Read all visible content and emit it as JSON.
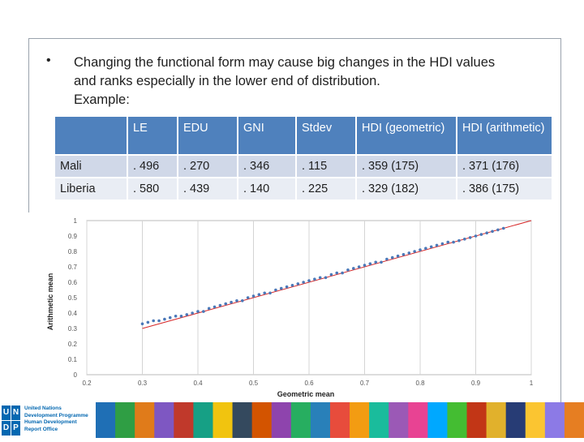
{
  "slide": {
    "bullet": "•",
    "text_line1": "Changing the functional form may cause big changes in the HDI values",
    "text_line2": "and ranks especially in the lower end of distribution.",
    "text_line3": "Example:"
  },
  "table": {
    "headers": [
      "",
      "LE",
      "EDU",
      "GNI",
      "Stdev",
      "HDI (geometric)",
      "HDI (arithmetic)"
    ],
    "rows": [
      [
        "Mali",
        ". 496",
        ". 270",
        ". 346",
        ". 115",
        ". 359 (175)",
        ". 371 (176)"
      ],
      [
        "Liberia",
        ". 580",
        ". 439",
        ". 140",
        ". 225",
        ". 329 (182)",
        ". 386 (175)"
      ]
    ]
  },
  "chart_data": {
    "type": "scatter",
    "xlabel": "Geometric mean",
    "ylabel": "Arithmetic mean",
    "xlim": [
      0.2,
      1
    ],
    "ylim": [
      0,
      1
    ],
    "xticks": [
      "0.2",
      "0.3",
      "0.4",
      "0.5",
      "0.6",
      "0.7",
      "0.8",
      "0.9",
      "1"
    ],
    "yticks": [
      "0",
      "0.1",
      "0.2",
      "0.3",
      "0.4",
      "0.5",
      "0.6",
      "0.7",
      "0.8",
      "0.9",
      "1"
    ],
    "grid": "vertical",
    "reference_line": {
      "from": [
        0.3,
        0.3
      ],
      "to": [
        1,
        1
      ],
      "color": "#d62728"
    },
    "point_color": "#4a78b8",
    "points": [
      [
        0.3,
        0.33
      ],
      [
        0.31,
        0.34
      ],
      [
        0.32,
        0.35
      ],
      [
        0.33,
        0.35
      ],
      [
        0.34,
        0.36
      ],
      [
        0.35,
        0.37
      ],
      [
        0.36,
        0.38
      ],
      [
        0.37,
        0.38
      ],
      [
        0.38,
        0.39
      ],
      [
        0.39,
        0.4
      ],
      [
        0.4,
        0.41
      ],
      [
        0.41,
        0.41
      ],
      [
        0.42,
        0.43
      ],
      [
        0.43,
        0.44
      ],
      [
        0.44,
        0.45
      ],
      [
        0.45,
        0.46
      ],
      [
        0.46,
        0.47
      ],
      [
        0.47,
        0.48
      ],
      [
        0.48,
        0.48
      ],
      [
        0.49,
        0.5
      ],
      [
        0.5,
        0.51
      ],
      [
        0.51,
        0.52
      ],
      [
        0.52,
        0.53
      ],
      [
        0.53,
        0.53
      ],
      [
        0.54,
        0.55
      ],
      [
        0.55,
        0.56
      ],
      [
        0.56,
        0.57
      ],
      [
        0.57,
        0.58
      ],
      [
        0.58,
        0.59
      ],
      [
        0.59,
        0.6
      ],
      [
        0.6,
        0.61
      ],
      [
        0.61,
        0.62
      ],
      [
        0.62,
        0.63
      ],
      [
        0.63,
        0.63
      ],
      [
        0.64,
        0.65
      ],
      [
        0.65,
        0.66
      ],
      [
        0.66,
        0.66
      ],
      [
        0.67,
        0.68
      ],
      [
        0.68,
        0.69
      ],
      [
        0.69,
        0.7
      ],
      [
        0.7,
        0.71
      ],
      [
        0.71,
        0.72
      ],
      [
        0.72,
        0.73
      ],
      [
        0.73,
        0.73
      ],
      [
        0.74,
        0.75
      ],
      [
        0.75,
        0.76
      ],
      [
        0.76,
        0.77
      ],
      [
        0.77,
        0.78
      ],
      [
        0.78,
        0.79
      ],
      [
        0.79,
        0.8
      ],
      [
        0.8,
        0.81
      ],
      [
        0.81,
        0.82
      ],
      [
        0.82,
        0.83
      ],
      [
        0.83,
        0.84
      ],
      [
        0.84,
        0.85
      ],
      [
        0.85,
        0.86
      ],
      [
        0.86,
        0.86
      ],
      [
        0.87,
        0.87
      ],
      [
        0.88,
        0.88
      ],
      [
        0.89,
        0.89
      ],
      [
        0.9,
        0.9
      ],
      [
        0.91,
        0.91
      ],
      [
        0.92,
        0.92
      ],
      [
        0.93,
        0.93
      ],
      [
        0.94,
        0.94
      ],
      [
        0.95,
        0.95
      ]
    ]
  },
  "footer": {
    "logo_letters": [
      "U",
      "N",
      "D",
      "P"
    ],
    "org_line1": "United Nations",
    "org_line2": "Development Programme",
    "org_line3": "Human Development",
    "org_line4": "Report Office",
    "tile_colors": [
      "#1f6fb5",
      "#2f9e44",
      "#e07b1a",
      "#7e57c2",
      "#c0392b",
      "#16a085",
      "#f1c40f",
      "#34495e",
      "#d35400",
      "#8e44ad",
      "#27ae60",
      "#2980b9",
      "#e74c3c",
      "#f39c12",
      "#1abc9c",
      "#9b59b6",
      "#e84393",
      "#00a8ff",
      "#44bd32",
      "#c23616",
      "#e1b12c",
      "#273c75",
      "#fbc531",
      "#8c7ae6",
      "#e67e22"
    ]
  }
}
